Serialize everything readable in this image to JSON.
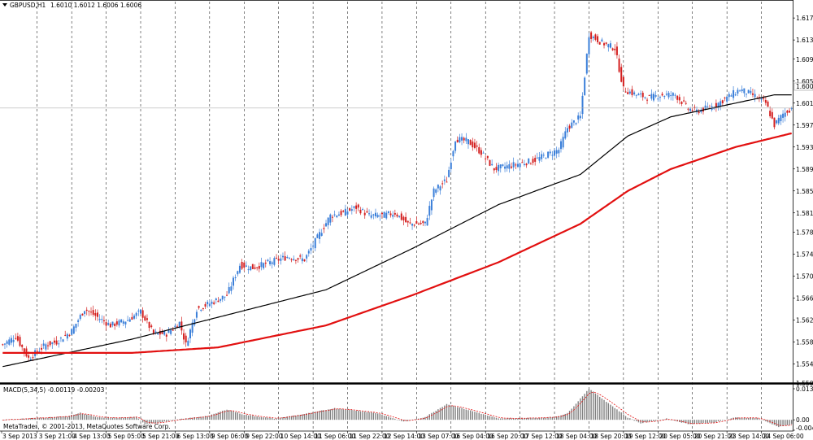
{
  "header": {
    "symbol": "GBPUSD,H1",
    "ohlc": "1.6010 1.6012 1.6006 1.6006"
  },
  "price_axis": {
    "ticks": [
      "1.6170",
      "1.6130",
      "1.6095",
      "1.6055",
      "1.6015",
      "1.5975",
      "1.5935",
      "1.5895",
      "1.5855",
      "1.5815",
      "1.5780",
      "1.5740",
      "1.5700",
      "1.5660",
      "1.5620",
      "1.5580",
      "1.5540",
      "1.5505"
    ],
    "current_price": "1.6006"
  },
  "time_axis": {
    "labels": [
      "3 Sep 2013",
      "3 Sep 21:00",
      "4 Sep 13:00",
      "5 Sep 05:00",
      "5 Sep 21:00",
      "6 Sep 13:00",
      "9 Sep 06:00",
      "9 Sep 22:00",
      "10 Sep 14:00",
      "11 Sep 06:00",
      "11 Sep 22:00",
      "12 Sep 14:00",
      "13 Sep 07:00",
      "16 Sep 04:00",
      "16 Sep 20:00",
      "17 Sep 12:00",
      "18 Sep 04:00",
      "18 Sep 20:00",
      "19 Sep 12:00",
      "20 Sep 05:00",
      "20 Sep 21:00",
      "23 Sep 14:00",
      "24 Sep 06:00"
    ]
  },
  "indicator": {
    "title": "MACD(5,34,5) -0.00119 -0.00203",
    "ticks": [
      "0.01336",
      "0.00",
      "-0.00449"
    ]
  },
  "copyright": "MetaTrader, © 2001-2013, MetaQuotes Software Corp.",
  "colors": {
    "background": "#ffffff",
    "bull": "#3b7fd9",
    "bear": "#d42020",
    "ma_fast": "#000000",
    "ma_slow": "#e21010",
    "macd_hist": "#808080",
    "signal": "#e21010"
  },
  "chart_data": {
    "type": "candlestick",
    "symbol": "GBPUSD",
    "timeframe": "H1",
    "y_range": [
      1.5505,
      1.6185
    ],
    "price_keypoints": [
      [
        0,
        1.5575
      ],
      [
        6,
        1.559
      ],
      [
        12,
        1.555
      ],
      [
        20,
        1.5575
      ],
      [
        25,
        1.558
      ],
      [
        32,
        1.56
      ],
      [
        38,
        1.564
      ],
      [
        42,
        1.563
      ],
      [
        50,
        1.561
      ],
      [
        58,
        1.562
      ],
      [
        64,
        1.5635
      ],
      [
        70,
        1.5595
      ],
      [
        76,
        1.5595
      ],
      [
        82,
        1.5615
      ],
      [
        85,
        1.5575
      ],
      [
        90,
        1.564
      ],
      [
        96,
        1.565
      ],
      [
        104,
        1.5665
      ],
      [
        110,
        1.572
      ],
      [
        116,
        1.5715
      ],
      [
        124,
        1.5725
      ],
      [
        132,
        1.5735
      ],
      [
        140,
        1.573
      ],
      [
        146,
        1.577
      ],
      [
        152,
        1.581
      ],
      [
        158,
        1.5815
      ],
      [
        164,
        1.5825
      ],
      [
        170,
        1.581
      ],
      [
        176,
        1.581
      ],
      [
        182,
        1.5815
      ],
      [
        188,
        1.5795
      ],
      [
        196,
        1.5795
      ],
      [
        200,
        1.5855
      ],
      [
        206,
        1.5875
      ],
      [
        210,
        1.595
      ],
      [
        216,
        1.5945
      ],
      [
        222,
        1.5925
      ],
      [
        228,
        1.5895
      ],
      [
        234,
        1.59
      ],
      [
        240,
        1.5905
      ],
      [
        246,
        1.591
      ],
      [
        252,
        1.592
      ],
      [
        258,
        1.593
      ],
      [
        262,
        1.597
      ],
      [
        268,
        1.599
      ],
      [
        272,
        1.614
      ],
      [
        278,
        1.6125
      ],
      [
        284,
        1.6115
      ],
      [
        288,
        1.604
      ],
      [
        294,
        1.603
      ],
      [
        300,
        1.6025
      ],
      [
        306,
        1.603
      ],
      [
        312,
        1.603
      ],
      [
        318,
        1.6005
      ],
      [
        322,
        1.6
      ],
      [
        330,
        1.601
      ],
      [
        336,
        1.6025
      ],
      [
        342,
        1.604
      ],
      [
        348,
        1.603
      ],
      [
        354,
        1.6015
      ],
      [
        358,
        1.5975
      ],
      [
        362,
        1.5995
      ],
      [
        366,
        1.6006
      ]
    ],
    "ma_fast_keypoints": [
      [
        0,
        1.5535
      ],
      [
        60,
        1.5585
      ],
      [
        100,
        1.5625
      ],
      [
        150,
        1.5675
      ],
      [
        190,
        1.575
      ],
      [
        230,
        1.583
      ],
      [
        268,
        1.5885
      ],
      [
        290,
        1.5955
      ],
      [
        310,
        1.599
      ],
      [
        340,
        1.6015
      ],
      [
        358,
        1.603
      ],
      [
        366,
        1.603
      ]
    ],
    "ma_slow_keypoints": [
      [
        0,
        1.556
      ],
      [
        60,
        1.556
      ],
      [
        100,
        1.557
      ],
      [
        150,
        1.561
      ],
      [
        190,
        1.5665
      ],
      [
        230,
        1.5725
      ],
      [
        268,
        1.5795
      ],
      [
        290,
        1.5855
      ],
      [
        310,
        1.5895
      ],
      [
        340,
        1.5935
      ],
      [
        366,
        1.596
      ]
    ],
    "macd_range": [
      -0.00449,
      0.01336
    ],
    "macd_keypoints": [
      [
        0,
        0.0
      ],
      [
        10,
        0.0005
      ],
      [
        20,
        0.001
      ],
      [
        30,
        0.0015
      ],
      [
        36,
        0.003
      ],
      [
        44,
        0.001
      ],
      [
        52,
        0.0008
      ],
      [
        62,
        0.0012
      ],
      [
        66,
        -0.0018
      ],
      [
        74,
        -0.001
      ],
      [
        80,
        0.0
      ],
      [
        96,
        0.0018
      ],
      [
        104,
        0.0045
      ],
      [
        112,
        0.0022
      ],
      [
        126,
        0.0005
      ],
      [
        140,
        0.0025
      ],
      [
        154,
        0.005
      ],
      [
        164,
        0.004
      ],
      [
        174,
        0.0028
      ],
      [
        186,
        -0.0008
      ],
      [
        196,
        0.0012
      ],
      [
        206,
        0.0068
      ],
      [
        220,
        0.0032
      ],
      [
        230,
        0.0005
      ],
      [
        246,
        0.0008
      ],
      [
        256,
        0.0012
      ],
      [
        262,
        0.0028
      ],
      [
        272,
        0.0134
      ],
      [
        282,
        0.0065
      ],
      [
        290,
        0.001
      ],
      [
        296,
        -0.0015
      ],
      [
        308,
        0.0005
      ],
      [
        318,
        -0.0018
      ],
      [
        330,
        -0.0012
      ],
      [
        340,
        0.001
      ],
      [
        350,
        0.0008
      ],
      [
        360,
        -0.003
      ],
      [
        366,
        -0.002
      ]
    ],
    "bars": 367
  }
}
